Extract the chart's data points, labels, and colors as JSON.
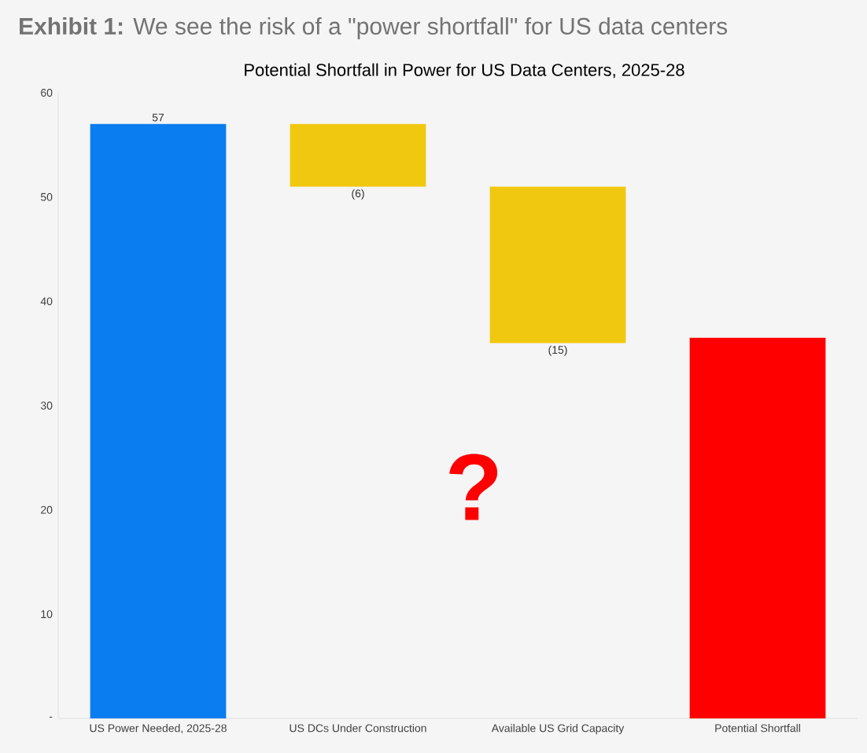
{
  "chart_data": {
    "type": "bar",
    "title": "**Exhibit 1:** We see the risk of a \"power shortfall\" for US data centers",
    "subtitle": "Potential Shortfall in Power for US Data Centers, 2025-28",
    "categories": [
      "US Power Needed, 2025-28",
      "US DCs Under Construction",
      "Available US Grid Capacity",
      "Potential Shortfall"
    ],
    "values": [
      57,
      -6,
      -15,
      36.5
    ],
    "base": [
      0,
      57,
      51,
      0
    ],
    "colors": [
      "#0a7df0",
      "#f0c80f",
      "#f0c80f",
      "#ff0000"
    ],
    "value_labels": [
      "57",
      "(6)",
      "(15)",
      null
    ],
    "ylim": [
      0,
      60
    ],
    "yticks": [
      {
        "value": 0,
        "label": "-"
      },
      10,
      20,
      30,
      40,
      50,
      60
    ],
    "grid": false,
    "annotations": [
      "?"
    ]
  }
}
